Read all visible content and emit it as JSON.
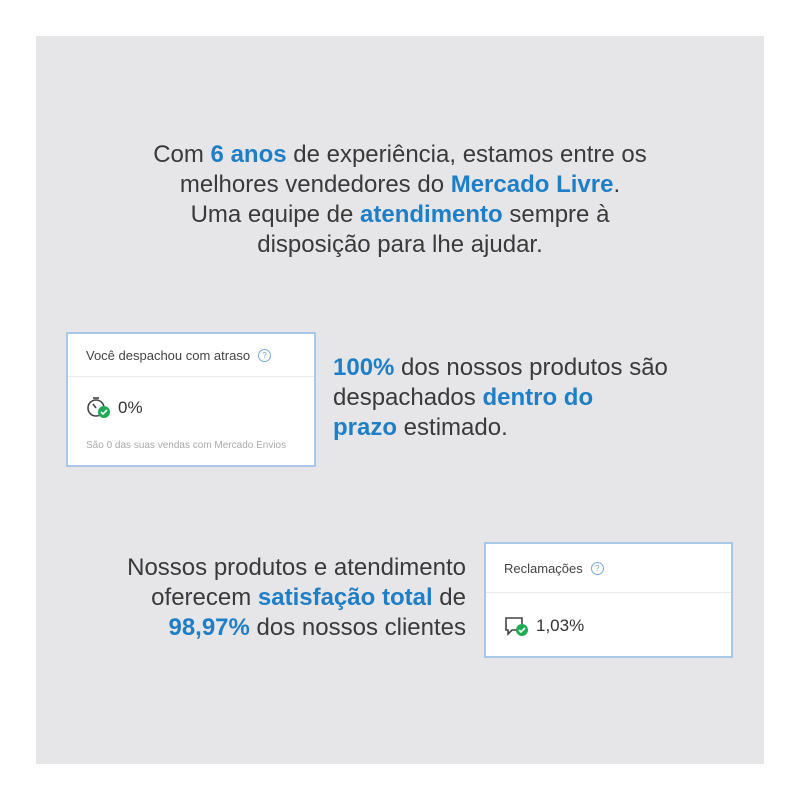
{
  "colors": {
    "accent": "#1f7fc6",
    "text": "#3a3a3a",
    "panel": "#e6e6e8",
    "success": "#1fab54"
  },
  "headline": [
    {
      "t": "Com ",
      "b": false
    },
    {
      "t": "6 anos",
      "b": true
    },
    {
      "t": " de experiência, estamos entre os",
      "b": false
    },
    {
      "br": true
    },
    {
      "t": "melhores vendedores do ",
      "b": false
    },
    {
      "t": "Mercado Livre",
      "b": true
    },
    {
      "t": ".",
      "b": false
    },
    {
      "br": true
    },
    {
      "t": "Uma equipe de ",
      "b": false
    },
    {
      "t": "atendimento",
      "b": true
    },
    {
      "t": " sempre à",
      "b": false
    },
    {
      "br": true
    },
    {
      "t": "disposição para lhe ajudar.",
      "b": false
    }
  ],
  "shipping_text": [
    {
      "t": "100%",
      "b": true
    },
    {
      "t": " dos nossos produtos são",
      "b": false
    },
    {
      "br": true
    },
    {
      "t": "despachados ",
      "b": false
    },
    {
      "t": "dentro do",
      "b": true
    },
    {
      "br": true
    },
    {
      "t": "prazo",
      "b": true
    },
    {
      "t": " estimado.",
      "b": false
    }
  ],
  "satisfaction_text": [
    {
      "t": "Nossos produtos e atendimento",
      "b": false
    },
    {
      "br": true
    },
    {
      "t": "oferecem ",
      "b": false
    },
    {
      "t": "satisfação total",
      "b": true
    },
    {
      "t": " de",
      "b": false
    },
    {
      "br": true
    },
    {
      "t": "98,97%",
      "b": true
    },
    {
      "t": " dos nossos clientes",
      "b": false
    }
  ],
  "delay_card": {
    "title": "Você despachou com atraso",
    "help_icon": "help-circle-icon",
    "icon": "stopwatch-check-icon",
    "value": "0%",
    "note": "São 0 das suas vendas com Mercado Envios"
  },
  "claims_card": {
    "title": "Reclamações",
    "help_icon": "help-circle-icon",
    "icon": "chat-check-icon",
    "value": "1,03%"
  }
}
